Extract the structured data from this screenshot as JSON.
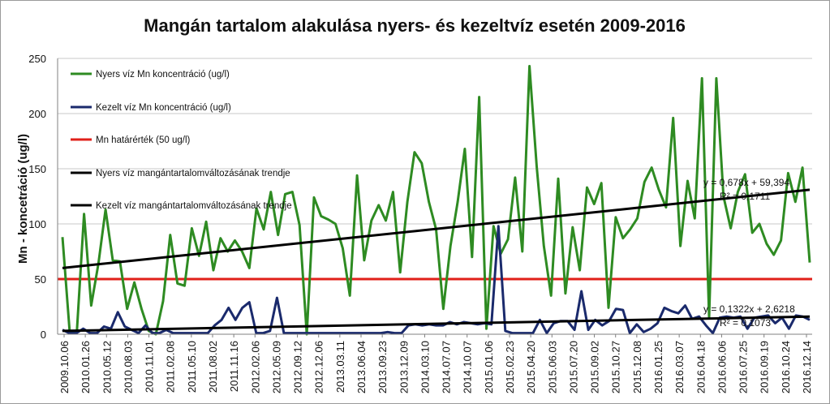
{
  "chart_data": {
    "type": "line",
    "title": "Mangán tartalom alakulása nyers- és kezeltvíz esetén 2009-2016",
    "ylabel": "Mn - koncetráció  (ug/l)",
    "xlabel": "",
    "ylim": [
      0,
      250
    ],
    "yticks": [
      0,
      50,
      100,
      150,
      200,
      250
    ],
    "grid": true,
    "legend_position": "top-left",
    "x_tick_labels": [
      "2009.10.06",
      "2010.01.26",
      "2010.05.12",
      "2010.08.03",
      "2010.11.01",
      "2011.02.08",
      "2011.05.10",
      "2011.08.02",
      "2011.11.16",
      "2012.02.06",
      "2012.05.09",
      "2012.09.12",
      "2012.12.06",
      "2013.03.11",
      "2013.06.04",
      "2013.09.23",
      "2013.12.09",
      "2014.03.10",
      "2014.07.07",
      "2014.10.07",
      "2015.01.06",
      "2015.02.23",
      "2015.04.20",
      "2015.06.03",
      "2015.07.20",
      "2015.09.02",
      "2015.10.27",
      "2015.12.08",
      "2016.01.25",
      "2016.03.07",
      "2016.04.18",
      "2016.06.06",
      "2016.07.25",
      "2016.09.19",
      "2016.10.24",
      "2016.12.14"
    ],
    "series": [
      {
        "name": "Nyers víz Mn koncentráció (ug/l)",
        "color": "#2e8b22",
        "values": [
          88,
          2,
          2,
          109,
          26,
          64,
          113,
          67,
          66,
          23,
          47,
          23,
          3,
          0,
          30,
          90,
          46,
          44,
          96,
          71,
          102,
          58,
          87,
          75,
          85,
          75,
          60,
          114,
          95,
          129,
          90,
          127,
          129,
          99,
          0,
          124,
          107,
          104,
          100,
          78,
          35,
          144,
          67,
          103,
          117,
          103,
          129,
          56,
          120,
          165,
          155,
          120,
          95,
          23,
          80,
          120,
          168,
          70,
          215,
          5,
          98,
          73,
          86,
          142,
          75,
          243,
          152,
          80,
          35,
          141,
          37,
          97,
          58,
          133,
          118,
          137,
          24,
          106,
          87,
          95,
          105,
          138,
          151,
          131,
          115,
          196,
          80,
          139,
          105,
          232,
          15,
          232,
          125,
          96,
          129,
          145,
          92,
          100,
          82,
          72,
          85,
          146,
          120,
          151,
          65
        ]
      },
      {
        "name": "Kezelt víz Mn koncentráció (ug/l)",
        "color": "#1a2a6c",
        "values": [
          4,
          1,
          1,
          5,
          1,
          1,
          7,
          5,
          20,
          7,
          4,
          1,
          8,
          1,
          1,
          4,
          1,
          1,
          1,
          1,
          1,
          1,
          8,
          13,
          24,
          13,
          24,
          29,
          1,
          1,
          3,
          33,
          1,
          1,
          1,
          1,
          1,
          1,
          1,
          1,
          1,
          1,
          1,
          1,
          1,
          1,
          1,
          2,
          1,
          1,
          8,
          9,
          8,
          9,
          8,
          8,
          11,
          9,
          11,
          10,
          9,
          10,
          9,
          98,
          3,
          1,
          1,
          1,
          1,
          13,
          1,
          10,
          12,
          12,
          4,
          39,
          4,
          13,
          8,
          12,
          23,
          22,
          1,
          9,
          2,
          5,
          10,
          24,
          21,
          19,
          26,
          14,
          16,
          8,
          1,
          15,
          16,
          15,
          16,
          5,
          15,
          16,
          17,
          10,
          15,
          5,
          17,
          16,
          13
        ]
      },
      {
        "name": "Mn határérték (50 ug/l)",
        "color": "#e0201a",
        "values": [
          50,
          50
        ]
      },
      {
        "name": "Nyers víz mangántartalomváltozásának trendje",
        "color": "#000000",
        "trend": {
          "slope": 0.678,
          "intercept": 59.394
        },
        "values": [
          60,
          131
        ]
      },
      {
        "name": "Kezelt víz mangántartalomváltozásának trendje",
        "color": "#000000",
        "trend": {
          "slope": 0.1322,
          "intercept": 2.6218
        },
        "values": [
          3,
          16
        ]
      }
    ],
    "annotations": [
      {
        "text": "y = 0,678x + 59,394",
        "near": "raw-trend-end",
        "at": [
          0.9,
          131
        ]
      },
      {
        "text": "R² = 0,1711",
        "near": "raw-trend-end",
        "at": [
          0.89,
          117
        ]
      },
      {
        "text": "y = 0,1322x + 2,6218",
        "near": "treated-trend-end",
        "at": [
          0.9,
          22
        ]
      },
      {
        "text": "R² = 0,1073",
        "near": "treated-trend-end",
        "at": [
          0.89,
          9
        ]
      }
    ]
  }
}
